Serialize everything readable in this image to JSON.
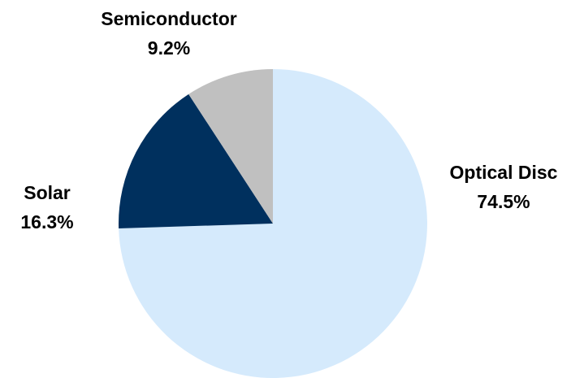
{
  "chart_data": {
    "type": "pie",
    "categories": [
      "Optical Disc",
      "Solar",
      "Semiconductor"
    ],
    "values": [
      74.5,
      16.3,
      9.2
    ],
    "value_labels": [
      "74.5%",
      "16.3%",
      "9.2%"
    ],
    "colors": [
      "#d5eafc",
      "#00305e",
      "#c0c0c0"
    ]
  }
}
